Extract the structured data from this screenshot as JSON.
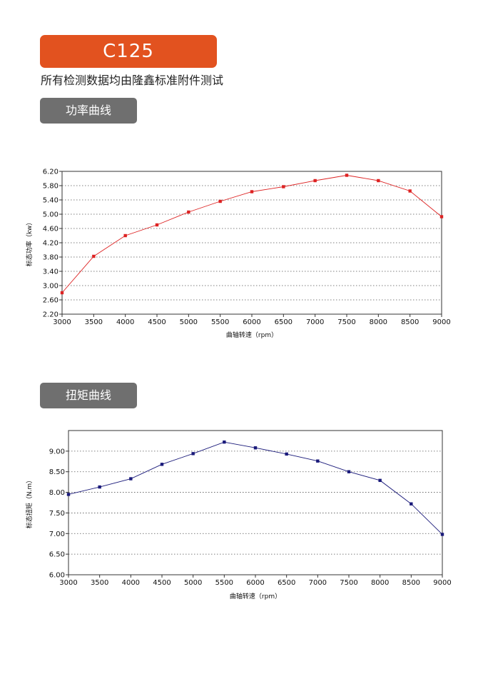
{
  "header": {
    "model": "C125",
    "note": "所有检测数据均由隆鑫标准附件测试"
  },
  "sections": [
    {
      "label": "功率曲线"
    },
    {
      "label": "扭矩曲线"
    }
  ],
  "chart_data": [
    {
      "type": "line",
      "x": [
        3000,
        3500,
        4000,
        4500,
        5000,
        5500,
        6000,
        6500,
        7000,
        7500,
        8000,
        8500,
        9000
      ],
      "series": [
        {
          "values": [
            2.8,
            3.82,
            4.4,
            4.7,
            5.06,
            5.36,
            5.63,
            5.77,
            5.94,
            6.09,
            5.94,
            5.65,
            4.93
          ],
          "color": "#dd2222"
        }
      ],
      "xlabel": "曲轴转速（rpm）",
      "ylabel": "标态功率（kw）",
      "xlim": [
        3000,
        9000
      ],
      "ylim": [
        2.2,
        6.2
      ],
      "yticks": [
        "2.20",
        "2.60",
        "3.00",
        "3.40",
        "3.80",
        "4.20",
        "4.60",
        "5.00",
        "5.40",
        "5.80",
        "6.20"
      ],
      "xticks": [
        "3000",
        "3500",
        "4000",
        "4500",
        "5000",
        "5500",
        "6000",
        "6500",
        "7000",
        "7500",
        "8000",
        "8500",
        "9000"
      ],
      "grid": "dotted-horizontal"
    },
    {
      "type": "line",
      "x": [
        3000,
        3500,
        4000,
        4500,
        5000,
        5500,
        6000,
        6500,
        7000,
        7500,
        8000,
        8500,
        9000
      ],
      "series": [
        {
          "values": [
            7.95,
            8.13,
            8.33,
            8.68,
            8.94,
            9.22,
            9.08,
            8.93,
            8.76,
            8.5,
            8.29,
            7.72,
            6.98
          ],
          "color": "#1a1a7a"
        }
      ],
      "xlabel": "曲轴转速（rpm）",
      "ylabel": "标态扭矩（N.m）",
      "xlim": [
        3000,
        9000
      ],
      "ylim": [
        6.0,
        9.5
      ],
      "yticks": [
        "6.00",
        "6.50",
        "7.00",
        "7.50",
        "8.00",
        "8.50",
        "9.00"
      ],
      "xticks": [
        "3000",
        "3500",
        "4000",
        "4500",
        "5000",
        "5500",
        "6000",
        "6500",
        "7000",
        "7500",
        "8000",
        "8500",
        "9000"
      ],
      "grid": "dotted-horizontal"
    }
  ]
}
